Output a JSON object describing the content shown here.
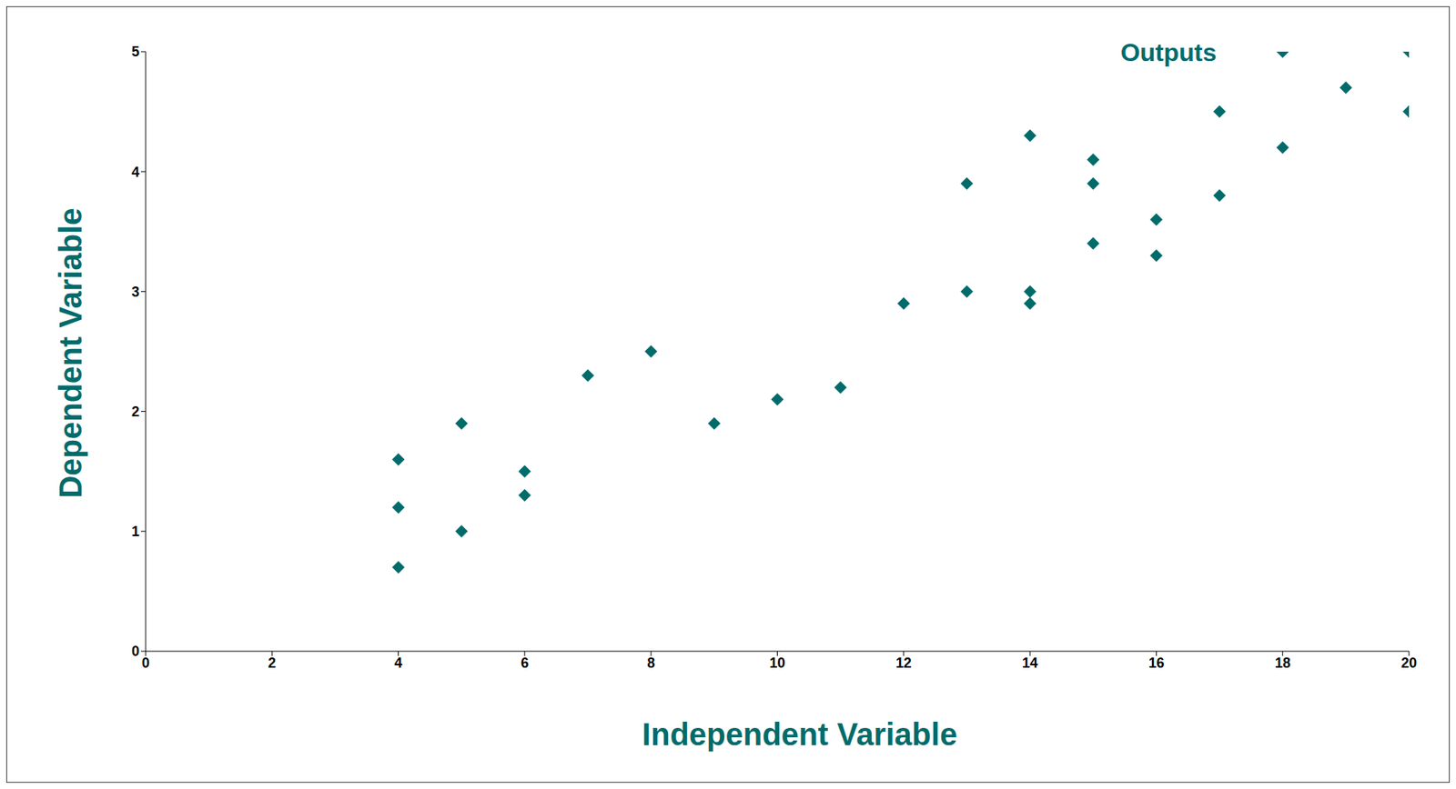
{
  "chart_data": {
    "type": "scatter",
    "title": "Outputs",
    "x_label": "Independent Variable",
    "y_label": "Dependent Variable",
    "series": [
      {
        "name": "Outputs",
        "color": "#006B6B",
        "marker": "diamond",
        "x": [
          4,
          4,
          4,
          5,
          5,
          6,
          6,
          7,
          8,
          9,
          10,
          11,
          12,
          13,
          13,
          14,
          14,
          14,
          15,
          15,
          15,
          16,
          16,
          17,
          17,
          18,
          18,
          19,
          20,
          20
        ],
        "values": [
          1.6,
          1.2,
          0.7,
          1.9,
          1.0,
          1.5,
          1.3,
          2.3,
          2.5,
          1.9,
          2.1,
          2.2,
          2.9,
          3.9,
          3.0,
          4.3,
          3.0,
          2.9,
          4.1,
          3.9,
          3.4,
          3.6,
          3.3,
          4.5,
          3.8,
          5.0,
          4.2,
          4.7,
          5.0,
          4.5
        ]
      }
    ],
    "xlim": [
      0,
      20
    ],
    "xticks": [
      0,
      2,
      4,
      6,
      8,
      10,
      12,
      14,
      16,
      18,
      20
    ],
    "ylim": [
      0,
      5
    ],
    "yticks": [
      0,
      1,
      2,
      3,
      4,
      5
    ],
    "grid": false
  }
}
